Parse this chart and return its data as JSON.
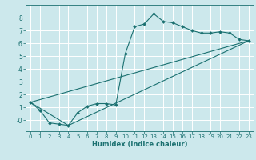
{
  "title": "",
  "xlabel": "Humidex (Indice chaleur)",
  "xlim": [
    -0.5,
    23.5
  ],
  "ylim": [
    -0.85,
    9.0
  ],
  "bg_color": "#cce8ec",
  "grid_color": "#ffffff",
  "line_color": "#1a7070",
  "line1_x": [
    0,
    1,
    2,
    3,
    4,
    5,
    6,
    7,
    8,
    9,
    10,
    11,
    12,
    13,
    14,
    15,
    16,
    17,
    18,
    19,
    20,
    21,
    22,
    23
  ],
  "line1_y": [
    1.4,
    0.8,
    -0.2,
    -0.3,
    -0.4,
    0.6,
    1.1,
    1.3,
    1.3,
    1.2,
    5.2,
    7.3,
    7.5,
    8.3,
    7.7,
    7.6,
    7.3,
    7.0,
    6.8,
    6.8,
    6.9,
    6.8,
    6.3,
    6.2
  ],
  "line2_x": [
    0,
    23
  ],
  "line2_y": [
    1.4,
    6.2
  ],
  "line3_x": [
    0,
    4,
    23
  ],
  "line3_y": [
    1.4,
    -0.4,
    6.2
  ],
  "xticks": [
    0,
    1,
    2,
    3,
    4,
    5,
    6,
    7,
    8,
    9,
    10,
    11,
    12,
    13,
    14,
    15,
    16,
    17,
    18,
    19,
    20,
    21,
    22,
    23
  ],
  "yticks": [
    0,
    1,
    2,
    3,
    4,
    5,
    6,
    7,
    8
  ],
  "ytick_labels": [
    "-0",
    "1",
    "2",
    "3",
    "4",
    "5",
    "6",
    "7",
    "8"
  ],
  "xtick_fontsize": 5.0,
  "ytick_fontsize": 5.5,
  "xlabel_fontsize": 6.0
}
